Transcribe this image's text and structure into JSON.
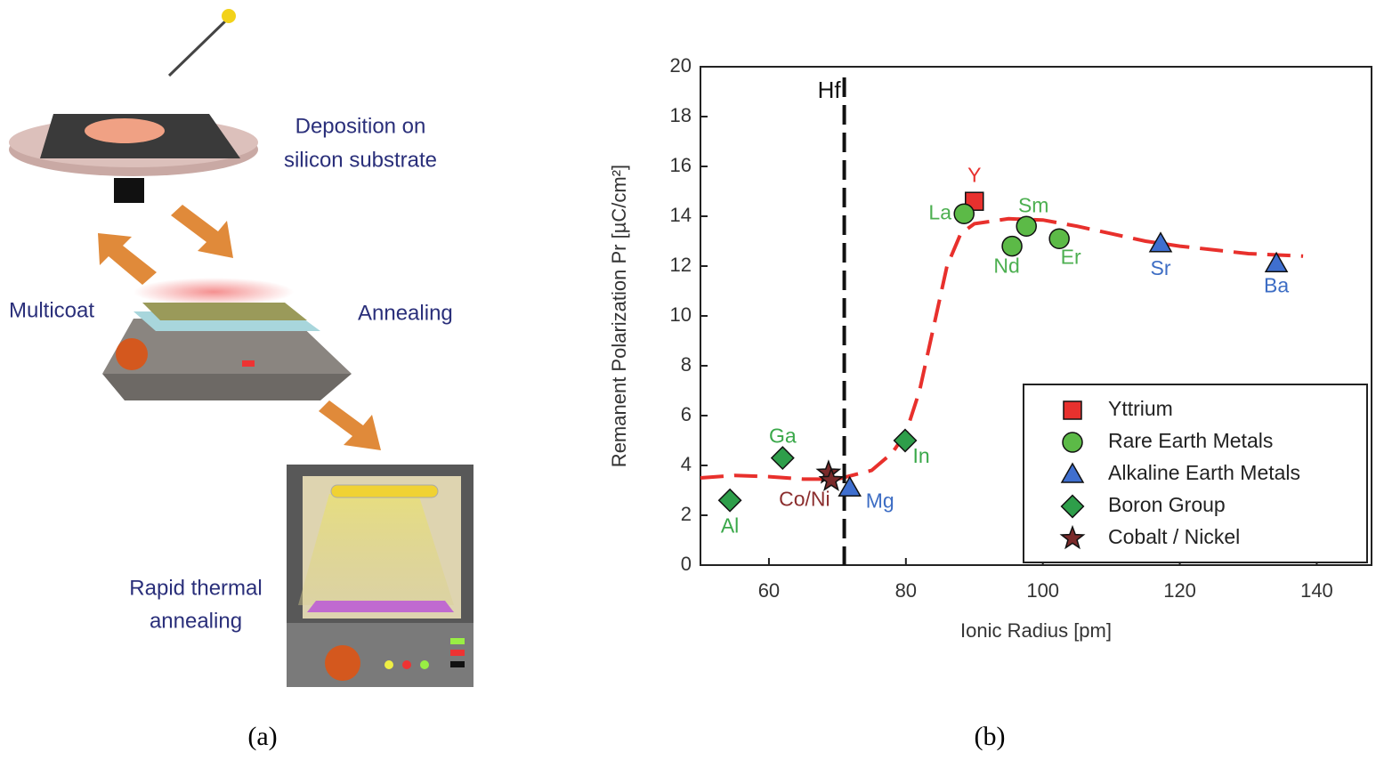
{
  "panel_a": {
    "labels": {
      "deposition": [
        "Deposition on",
        "silicon substrate"
      ],
      "multicoat": "Multicoat",
      "annealing": "Annealing",
      "rta": [
        "Rapid thermal",
        "annealing"
      ]
    },
    "caption": "(a)"
  },
  "chart_data": {
    "type": "scatter",
    "caption": "(b)",
    "xlabel": "Ionic Radius [pm]",
    "ylabel": "Remanent Polarization Pr [µC/cm²]",
    "xlim": [
      50,
      148
    ],
    "ylim": [
      0,
      20
    ],
    "xticks": [
      60,
      80,
      100,
      120,
      140
    ],
    "yticks": [
      0,
      2,
      4,
      6,
      8,
      10,
      12,
      14,
      16,
      18,
      20
    ],
    "legend": "lower right",
    "vline": {
      "x": 71,
      "label": "Hf"
    },
    "fit": {
      "color": "#e8302c",
      "x": [
        50,
        55,
        60,
        65,
        70,
        75,
        78,
        80,
        82,
        84,
        86,
        88,
        90,
        95,
        100,
        105,
        110,
        115,
        120,
        130,
        138
      ],
      "y": [
        3.5,
        3.6,
        3.55,
        3.45,
        3.45,
        3.8,
        4.5,
        5.3,
        7,
        9.5,
        12,
        13.3,
        13.7,
        13.9,
        13.85,
        13.6,
        13.3,
        13.0,
        12.8,
        12.5,
        12.4
      ]
    },
    "series": [
      {
        "name": "Yttrium",
        "marker": "square",
        "color": "#e8312e",
        "label_color": "#e8312e",
        "x": [
          90
        ],
        "y": [
          14.6
        ],
        "labels": [
          "Y"
        ]
      },
      {
        "name": "Rare Earth Metals",
        "marker": "circle",
        "color": "#5cba47",
        "label_color": "#4caf50",
        "x": [
          88.5,
          95.5,
          97.6,
          102.4
        ],
        "y": [
          14.1,
          12.8,
          13.6,
          13.1
        ],
        "labels": [
          "La",
          "Nd",
          "Sm",
          "Er"
        ]
      },
      {
        "name": "Alkaline Earth Metals",
        "marker": "triangle",
        "color": "#3f6fcf",
        "label_color": "#3d6dc4",
        "x": [
          71.8,
          117.2,
          134.1
        ],
        "y": [
          3.1,
          12.9,
          12.1
        ],
        "labels": [
          "Mg",
          "Sr",
          "Ba"
        ]
      },
      {
        "name": "Boron Group",
        "marker": "diamond",
        "color": "#2e9e4a",
        "label_color": "#3aa84a",
        "x": [
          54.3,
          62,
          79.9
        ],
        "y": [
          2.6,
          4.3,
          5.0
        ],
        "labels": [
          "Al",
          "Ga",
          "In"
        ]
      },
      {
        "name": "Cobalt / Nickel",
        "marker": "star",
        "color": "#7a2a2a",
        "label_color": "#8b2e2e",
        "x": [
          68.7,
          69.1
        ],
        "y": [
          3.7,
          3.4
        ],
        "labels": [
          "Co/Ni",
          null
        ]
      }
    ]
  }
}
